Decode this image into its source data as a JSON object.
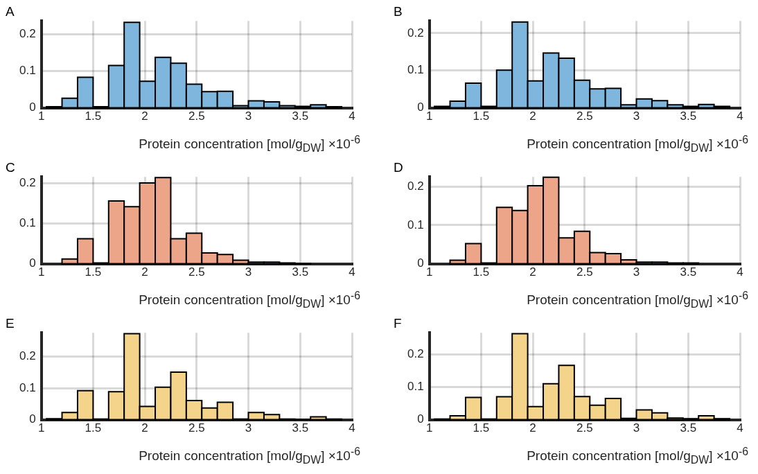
{
  "chart_data": [
    {
      "type": "histogram",
      "title": "A",
      "xlabel": "Protein concentration [mol/g$_{DW}$] ×10$^{-6}$",
      "color": "#7eb6de",
      "grid": true,
      "bins": [
        1.05,
        1.2,
        1.35,
        1.5,
        1.65,
        1.8,
        1.95,
        2.1,
        2.25,
        2.4,
        2.55,
        2.7,
        2.85,
        3.0,
        3.15,
        3.3,
        3.45,
        3.6,
        3.75,
        3.9
      ],
      "values": [
        0.003,
        0.026,
        0.083,
        0.003,
        0.115,
        0.232,
        0.072,
        0.137,
        0.121,
        0.064,
        0.044,
        0.045,
        0.006,
        0.019,
        0.016,
        0.006,
        0.004,
        0.008,
        0.003
      ],
      "xlim": [
        1,
        4
      ],
      "xticks": [
        1,
        1.5,
        2,
        2.5,
        3,
        3.5,
        4
      ],
      "ylim": [
        0,
        0.236
      ],
      "yticks": [
        0,
        0.1,
        0.2
      ]
    },
    {
      "type": "histogram",
      "title": "B",
      "xlabel": "Protein concentration [mol/g$_{DW}$] ×10$^{-6}$",
      "color": "#7eb6de",
      "grid": true,
      "bins": [
        1.05,
        1.2,
        1.35,
        1.5,
        1.65,
        1.8,
        1.95,
        2.1,
        2.25,
        2.4,
        2.55,
        2.7,
        2.85,
        3.0,
        3.15,
        3.3,
        3.45,
        3.6,
        3.75,
        3.9
      ],
      "values": [
        0.004,
        0.018,
        0.066,
        0.004,
        0.101,
        0.23,
        0.072,
        0.147,
        0.133,
        0.074,
        0.051,
        0.052,
        0.008,
        0.024,
        0.019,
        0.008,
        0.004,
        0.009,
        0.004
      ],
      "xlim": [
        1,
        4
      ],
      "xticks": [
        1,
        1.5,
        2,
        2.5,
        3,
        3.5,
        4
      ],
      "ylim": [
        0,
        0.233
      ],
      "yticks": [
        0,
        0.1,
        0.2
      ]
    },
    {
      "type": "histogram",
      "title": "C",
      "xlabel": "Protein concentration [mol/g$_{DW}$] ×10$^{-6}$",
      "color": "#eda58a",
      "grid": true,
      "bins": [
        1.2,
        1.35,
        1.5,
        1.65,
        1.8,
        1.95,
        2.1,
        2.25,
        2.4,
        2.55,
        2.7,
        2.85,
        3.0,
        3.15,
        3.3,
        3.45,
        3.6
      ],
      "values": [
        0.012,
        0.062,
        0.002,
        0.156,
        0.142,
        0.201,
        0.214,
        0.062,
        0.076,
        0.027,
        0.023,
        0.009,
        0.004,
        0.004,
        0.002,
        0.001
      ],
      "xlim": [
        1,
        4
      ],
      "xticks": [
        1,
        1.5,
        2,
        2.5,
        3,
        3.5,
        4
      ],
      "ylim": [
        0,
        0.216
      ],
      "yticks": [
        0,
        0.1,
        0.2
      ]
    },
    {
      "type": "histogram",
      "title": "D",
      "xlabel": "Protein concentration [mol/g$_{DW}$] ×10$^{-6}$",
      "color": "#eda58a",
      "grid": true,
      "bins": [
        1.2,
        1.35,
        1.5,
        1.65,
        1.8,
        1.95,
        2.1,
        2.25,
        2.4,
        2.55,
        2.7,
        2.85,
        3.0,
        3.15,
        3.3,
        3.45,
        3.6
      ],
      "values": [
        0.009,
        0.052,
        0.002,
        0.146,
        0.138,
        0.202,
        0.224,
        0.067,
        0.084,
        0.029,
        0.026,
        0.01,
        0.004,
        0.004,
        0.002,
        0.002
      ],
      "xlim": [
        1,
        4
      ],
      "xticks": [
        1,
        1.5,
        2,
        2.5,
        3,
        3.5,
        4
      ],
      "ylim": [
        0,
        0.225
      ],
      "yticks": [
        0,
        0.1,
        0.2
      ]
    },
    {
      "type": "histogram",
      "title": "E",
      "xlabel": "Protein concentration [mol/g$_{DW}$] ×10$^{-6}$",
      "color": "#f4d38a",
      "grid": true,
      "bins": [
        1.05,
        1.2,
        1.35,
        1.5,
        1.65,
        1.8,
        1.95,
        2.1,
        2.25,
        2.4,
        2.55,
        2.7,
        2.85,
        3.0,
        3.15,
        3.3,
        3.45,
        3.6,
        3.75,
        3.9
      ],
      "values": [
        0.003,
        0.023,
        0.092,
        0.002,
        0.089,
        0.273,
        0.042,
        0.103,
        0.151,
        0.061,
        0.037,
        0.055,
        0.002,
        0.023,
        0.016,
        0.002,
        0.001,
        0.009,
        0.002
      ],
      "xlim": [
        1,
        4
      ],
      "xticks": [
        1,
        1.5,
        2,
        2.5,
        3,
        3.5,
        4
      ],
      "ylim": [
        0,
        0.276
      ],
      "yticks": [
        0,
        0.1,
        0.2
      ]
    },
    {
      "type": "histogram",
      "title": "F",
      "xlabel": "Protein concentration [mol/g$_{DW}$] ×10$^{-6}$",
      "color": "#f4d38a",
      "grid": true,
      "bins": [
        1.05,
        1.2,
        1.35,
        1.5,
        1.65,
        1.8,
        1.95,
        2.1,
        2.25,
        2.4,
        2.55,
        2.7,
        2.85,
        3.0,
        3.15,
        3.3,
        3.45,
        3.6,
        3.75,
        3.9
      ],
      "values": [
        0.002,
        0.012,
        0.068,
        0.002,
        0.07,
        0.263,
        0.04,
        0.11,
        0.166,
        0.071,
        0.044,
        0.065,
        0.004,
        0.03,
        0.021,
        0.005,
        0.003,
        0.012,
        0.003
      ],
      "xlim": [
        1,
        4
      ],
      "xticks": [
        1,
        1.5,
        2,
        2.5,
        3,
        3.5,
        4
      ],
      "ylim": [
        0,
        0.266
      ],
      "yticks": [
        0,
        0.1,
        0.2
      ]
    }
  ]
}
